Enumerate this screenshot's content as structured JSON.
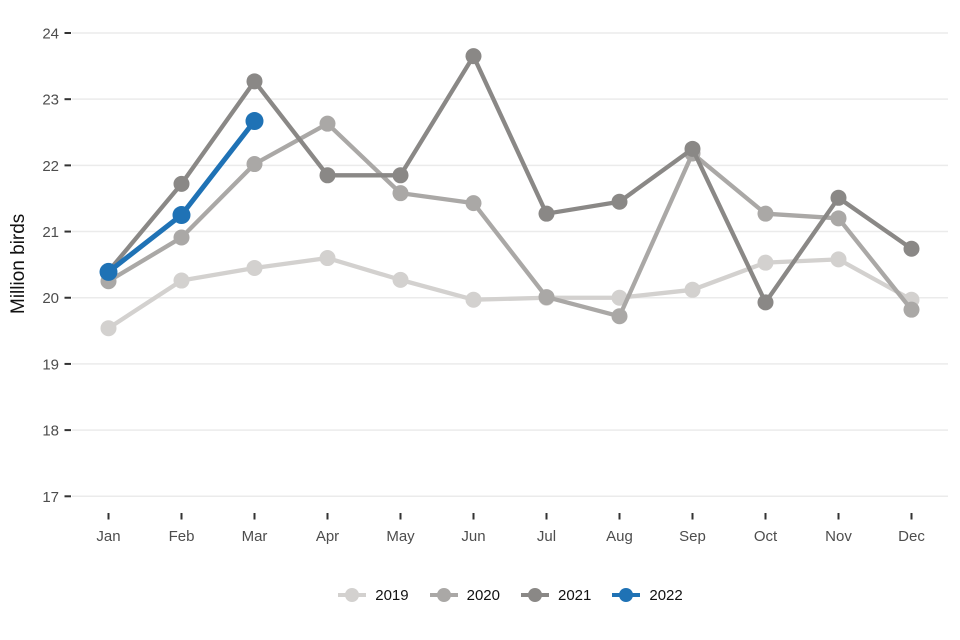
{
  "chart_data": {
    "type": "line",
    "title": "",
    "xlabel": "",
    "ylabel": "Million birds",
    "categories": [
      "Jan",
      "Feb",
      "Mar",
      "Apr",
      "May",
      "Jun",
      "Jul",
      "Aug",
      "Sep",
      "Oct",
      "Nov",
      "Dec"
    ],
    "ylim": [
      17,
      24
    ],
    "yticks": [
      17,
      18,
      19,
      20,
      21,
      22,
      23,
      24
    ],
    "grid": "horizontal",
    "legend_position": "bottom",
    "series": [
      {
        "name": "2019",
        "color": "#d3d1cf",
        "values": [
          19.54,
          20.26,
          20.45,
          20.6,
          20.27,
          19.97,
          20.0,
          20.0,
          20.12,
          20.53,
          20.58,
          19.97
        ]
      },
      {
        "name": "2020",
        "color": "#aaa8a6",
        "values": [
          20.25,
          20.91,
          22.02,
          22.63,
          21.58,
          21.43,
          20.01,
          19.72,
          22.18,
          21.27,
          21.2,
          19.82
        ]
      },
      {
        "name": "2021",
        "color": "#8a8886",
        "values": [
          20.4,
          21.72,
          23.27,
          21.85,
          21.85,
          23.65,
          21.27,
          21.45,
          22.25,
          19.93,
          21.51,
          20.74
        ]
      },
      {
        "name": "2022",
        "color": "#1f72b5",
        "values": [
          20.39,
          21.25,
          22.67
        ]
      }
    ],
    "colors": {
      "grid": "#ebebeb",
      "tick_mark": "#333333",
      "tick_label": "#4d4d4d",
      "text": "#111111",
      "background": "#ffffff"
    }
  }
}
